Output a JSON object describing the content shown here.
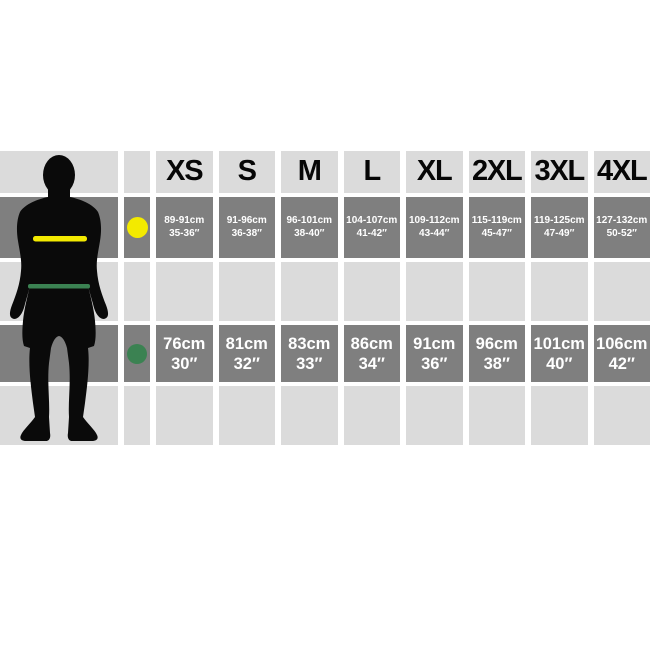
{
  "colors": {
    "chest_highlight": "#f3ea00",
    "waist_highlight": "#3b8252",
    "dark_cell": "#7f7f7f",
    "light_cell": "#dbdbdb",
    "silhouette": "#0a0a0a"
  },
  "legend": {
    "chest_icon": "yellow-dot",
    "waist_icon": "green-dot"
  },
  "chart_data": {
    "type": "table",
    "columns": [
      "XS",
      "S",
      "M",
      "L",
      "XL",
      "2XL",
      "3XL",
      "4XL"
    ],
    "rows": [
      {
        "name": "chest",
        "legend": "yellow-dot",
        "cm": [
          "89-91cm",
          "91-96cm",
          "96-101cm",
          "104-107cm",
          "109-112cm",
          "115-119cm",
          "119-125cm",
          "127-132cm"
        ],
        "inches": [
          "35-36″",
          "36-38″",
          "38-40″",
          "41-42″",
          "43-44″",
          "45-47″",
          "47-49″",
          "50-52″"
        ]
      },
      {
        "name": "waist",
        "legend": "green-dot",
        "cm": [
          "76cm",
          "81cm",
          "83cm",
          "86cm",
          "91cm",
          "96cm",
          "101cm",
          "106cm"
        ],
        "inches": [
          "30″",
          "32″",
          "33″",
          "34″",
          "36″",
          "38″",
          "40″",
          "42″"
        ]
      }
    ]
  }
}
